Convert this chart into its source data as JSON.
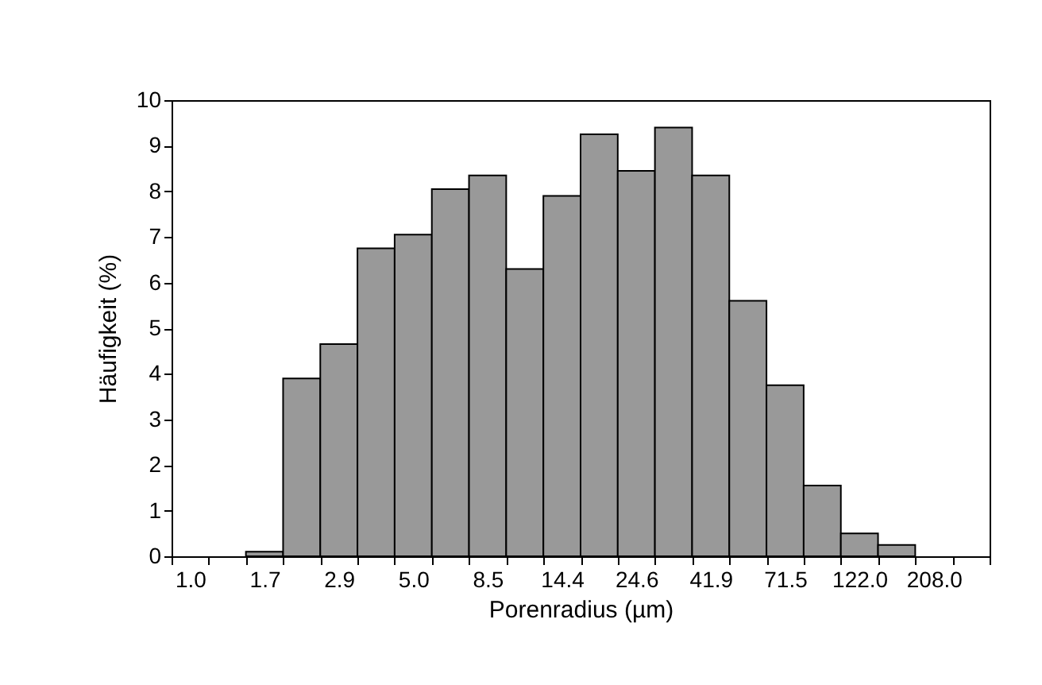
{
  "chart_data": {
    "type": "bar",
    "xlabel": "Porenradius (µm)",
    "ylabel": "Häufigkeit (%)",
    "categories": [
      "1.0",
      null,
      "1.7",
      null,
      "2.9",
      null,
      "5.0",
      null,
      "8.5",
      null,
      "14.4",
      null,
      "24.6",
      null,
      "41.9",
      null,
      "71.5",
      null,
      "122.0",
      null,
      "208.0",
      null
    ],
    "values": [
      0,
      0,
      0.1,
      3.9,
      4.65,
      6.75,
      7.05,
      8.05,
      8.35,
      6.3,
      7.9,
      9.25,
      8.45,
      9.4,
      8.35,
      5.6,
      3.75,
      1.55,
      0.5,
      0.25,
      0,
      0
    ],
    "color": "#999999",
    "ylim": [
      0,
      10
    ],
    "yticks": [
      0,
      1,
      2,
      3,
      4,
      5,
      6,
      7,
      8,
      9,
      10
    ]
  }
}
